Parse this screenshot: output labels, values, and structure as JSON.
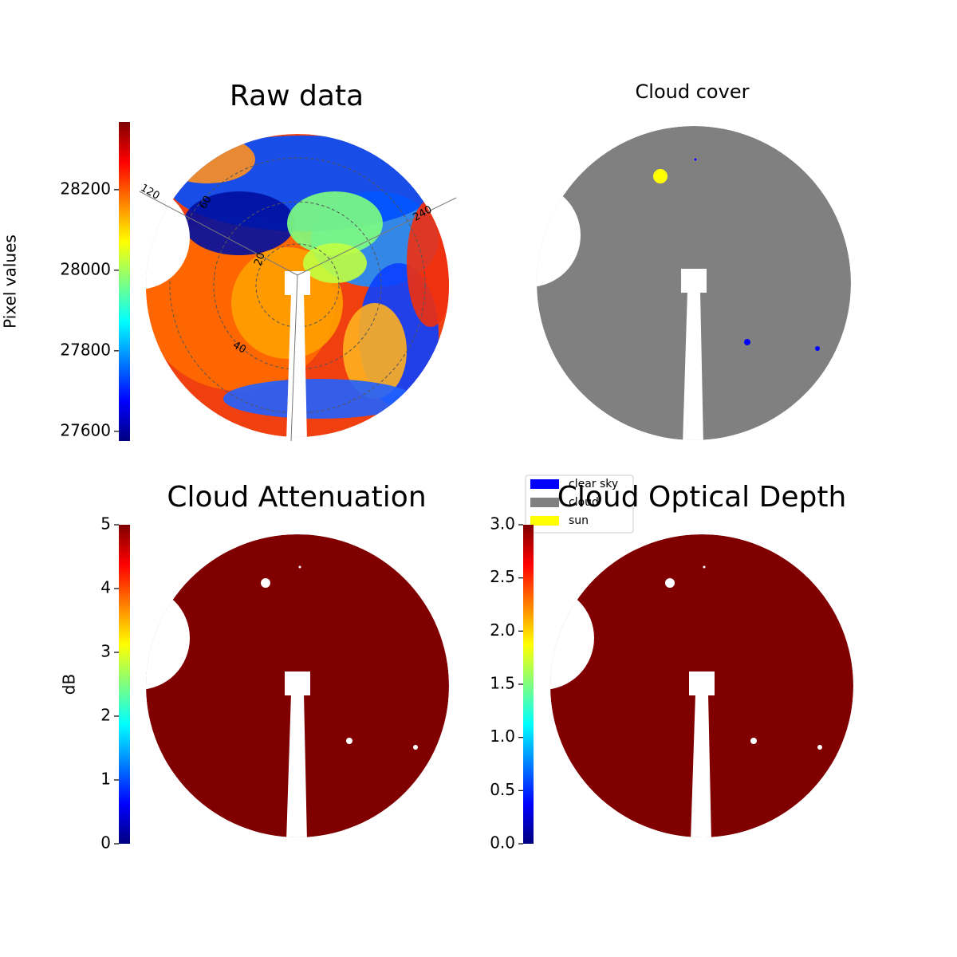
{
  "chart_data": [
    {
      "type": "image",
      "title": "Raw data",
      "colorbar": {
        "label": "Pixel values",
        "lim": [
          27576,
          28368
        ],
        "ticks": [
          27600,
          27800,
          28000,
          28200
        ],
        "colormap": "jet"
      },
      "annotations": [
        "120",
        "60",
        "240",
        "20",
        "40"
      ]
    },
    {
      "type": "image",
      "title": "Cloud cover",
      "legend": {
        "series": [
          {
            "name": "clear sky",
            "color": "#0000ff"
          },
          {
            "name": "cloud",
            "color": "#808080"
          },
          {
            "name": "sun",
            "color": "#ffff00"
          }
        ]
      }
    },
    {
      "type": "image",
      "title": "Cloud Attenuation",
      "color": "#800000",
      "colorbar": {
        "label": "dB",
        "lim": [
          0,
          5
        ],
        "ticks": [
          0,
          1,
          2,
          3,
          4,
          5
        ],
        "colormap": "jet"
      }
    },
    {
      "type": "image",
      "title": "Cloud Optical Depth",
      "color": "#800000",
      "colorbar": {
        "lim": [
          0,
          3
        ],
        "ticks": [
          {
            "value": 0,
            "label": "0.0"
          },
          {
            "value": 0.5,
            "label": "0.5"
          },
          {
            "value": 1,
            "label": "1.0"
          },
          {
            "value": 1.5,
            "label": "1.5"
          },
          {
            "value": 2,
            "label": "2.0"
          },
          {
            "value": 2.5,
            "label": "2.5"
          },
          {
            "value": 3,
            "label": "3.0"
          }
        ],
        "colormap": "jet"
      }
    }
  ]
}
